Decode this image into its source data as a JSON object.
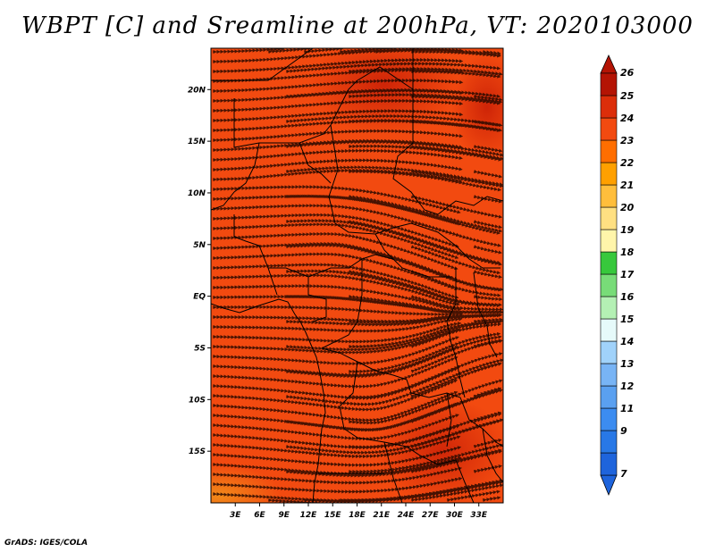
{
  "title": "WBPT [C] and Sreamline at 200hPa, VT: 2020103000",
  "footer": "GrADS: IGES/COLA",
  "colors": {
    "base_field": "#f24a10",
    "warm_patch": "#dc2e0a",
    "hot_patch": "#c81e06",
    "cool_patch": "#f2901a",
    "streamline": "#2a0a00",
    "border": "#000000"
  },
  "map": {
    "lon_range": [
      0,
      36
    ],
    "lat_range": [
      -20,
      24
    ],
    "lat_labels": [
      {
        "lat": 20,
        "text": "20N"
      },
      {
        "lat": 15,
        "text": "15N"
      },
      {
        "lat": 10,
        "text": "10N"
      },
      {
        "lat": 5,
        "text": "5N"
      },
      {
        "lat": 0,
        "text": "EQ"
      },
      {
        "lat": -5,
        "text": "5S"
      },
      {
        "lat": -10,
        "text": "10S"
      },
      {
        "lat": -15,
        "text": "15S"
      }
    ],
    "lon_labels": [
      {
        "lon": 3,
        "text": "3E"
      },
      {
        "lon": 6,
        "text": "6E"
      },
      {
        "lon": 9,
        "text": "9E"
      },
      {
        "lon": 12,
        "text": "12E"
      },
      {
        "lon": 15,
        "text": "15E"
      },
      {
        "lon": 18,
        "text": "18E"
      },
      {
        "lon": 21,
        "text": "21E"
      },
      {
        "lon": 24,
        "text": "24E"
      },
      {
        "lon": 27,
        "text": "27E"
      },
      {
        "lon": 30,
        "text": "30E"
      },
      {
        "lon": 33,
        "text": "33E"
      }
    ]
  },
  "colorbar": {
    "levels": [
      {
        "label": "7",
        "color": "#1e64dc"
      },
      {
        "label": "9",
        "color": "#2878e6"
      },
      {
        "label": "11",
        "color": "#3c8cf0"
      },
      {
        "label": "12",
        "color": "#5aa0f0"
      },
      {
        "label": "13",
        "color": "#78b4f5"
      },
      {
        "label": "14",
        "color": "#a0d2fa"
      },
      {
        "label": "15",
        "color": "#e6fafa"
      },
      {
        "label": "16",
        "color": "#b4f0b4"
      },
      {
        "label": "17",
        "color": "#78dc78"
      },
      {
        "label": "18",
        "color": "#37c83c"
      },
      {
        "label": "19",
        "color": "#fff5aa"
      },
      {
        "label": "20",
        "color": "#ffe082"
      },
      {
        "label": "21",
        "color": "#ffbe3c"
      },
      {
        "label": "22",
        "color": "#ffa000"
      },
      {
        "label": "23",
        "color": "#ff6e00"
      },
      {
        "label": "24",
        "color": "#f24a10"
      },
      {
        "label": "25",
        "color": "#dc2e0a"
      },
      {
        "label": "26",
        "color": "#b41404"
      }
    ],
    "lower_tip_color": "#1e64dc",
    "upper_tip_color": "#b41404"
  }
}
